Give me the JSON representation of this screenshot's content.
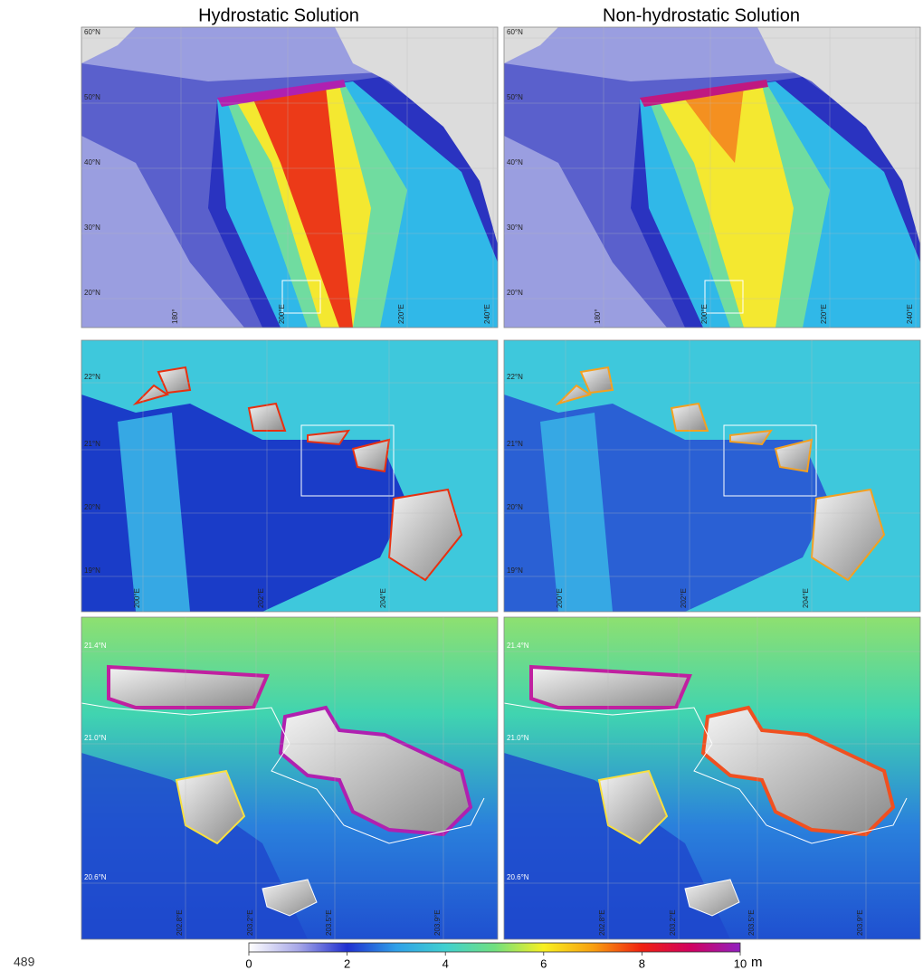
{
  "page_number": "489",
  "columns": [
    "Hydrostatic Solution",
    "Non-hydrostatic Solution"
  ],
  "rows": [
    {
      "lat": [
        "60°N",
        "50°N",
        "40°N",
        "30°N",
        "20°N"
      ],
      "lon": [
        "180°",
        "200°E",
        "220°E",
        "240°E"
      ]
    },
    {
      "lat": [
        "22°N",
        "21°N",
        "20°N",
        "19°N"
      ],
      "lon": [
        "200°E",
        "202°E",
        "204°E"
      ]
    },
    {
      "lat": [
        "21.4°N",
        "21.0°N",
        "20.6°N"
      ],
      "lon": [
        "202.8°E",
        "203.2°E",
        "203.5°E",
        "203.9°E"
      ]
    }
  ],
  "colorbar": {
    "lim": [
      0,
      10
    ],
    "ticks": [
      0,
      2,
      4,
      6,
      8,
      10
    ],
    "unit": "m"
  }
}
